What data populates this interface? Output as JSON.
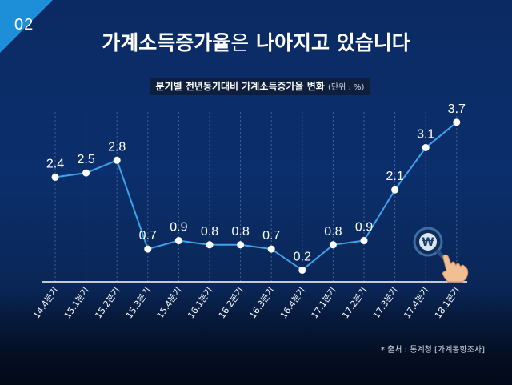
{
  "page_number": "02",
  "title": {
    "bold": "가계소득증가율",
    "light": "은",
    "rest": " 나아지고 있습니다"
  },
  "subtitle": {
    "main": "분기별 전년동기대비 가계소득증가율 변화",
    "unit": "(단위 : %)"
  },
  "source": "* 출처 : 통계청 [가계동향조사]",
  "icons": [
    "won-magnifier-icon",
    "pointing-hand-icon"
  ],
  "colors": {
    "line": "#3ea2ec",
    "marker": "#ffffff",
    "accent": "#1c8fd8"
  },
  "chart_data": {
    "type": "line",
    "categories": [
      "14.4분기",
      "15.1분기",
      "15.2분기",
      "15.3분기",
      "15.4분기",
      "16.1분기",
      "16.2분기",
      "16.3분기",
      "16.4분기",
      "17.1분기",
      "17.2분기",
      "17.3분기",
      "17.4분기",
      "18.1분기"
    ],
    "values": [
      2.4,
      2.5,
      2.8,
      0.7,
      0.9,
      0.8,
      0.8,
      0.7,
      0.2,
      0.8,
      0.9,
      2.1,
      3.1,
      3.7
    ],
    "value_labels": [
      "2.4",
      "2.5",
      "2.8",
      "0.7",
      "0.9",
      "0.8",
      "0.8",
      "0.7",
      "0.2",
      "0.8",
      "0.9",
      "2.1",
      "3.1",
      "3.7"
    ],
    "ylim": [
      0,
      4
    ],
    "grid": "vertical-dashed",
    "legend": "none"
  }
}
